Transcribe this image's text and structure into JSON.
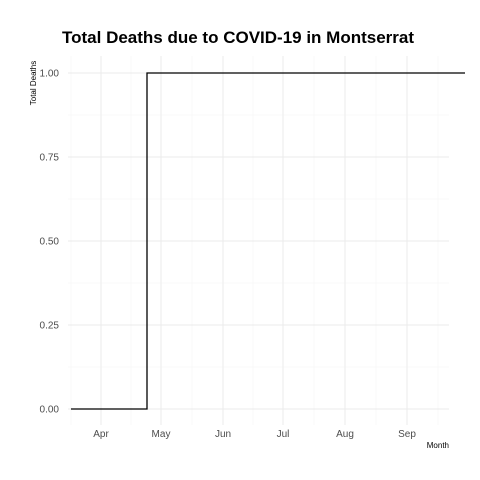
{
  "chart_data": {
    "type": "line",
    "title": "Total Deaths due to COVID-19 in Montserrat",
    "xlabel": "Month",
    "ylabel": "Total Deaths",
    "x_ticks": [
      "Apr",
      "May",
      "Jun",
      "Jul",
      "Aug",
      "Sep"
    ],
    "y_ticks": [
      "0.00",
      "0.25",
      "0.50",
      "0.75",
      "1.00"
    ],
    "ylim": [
      0,
      1
    ],
    "line_style": "step",
    "grid": true,
    "series": [
      {
        "color": "#000000",
        "points": [
          {
            "x": "2020-03-17",
            "y": 0
          },
          {
            "x": "2020-04-24",
            "y": 0
          },
          {
            "x": "2020-04-24",
            "y": 1
          },
          {
            "x": "2020-09-30",
            "y": 1
          }
        ]
      }
    ]
  }
}
